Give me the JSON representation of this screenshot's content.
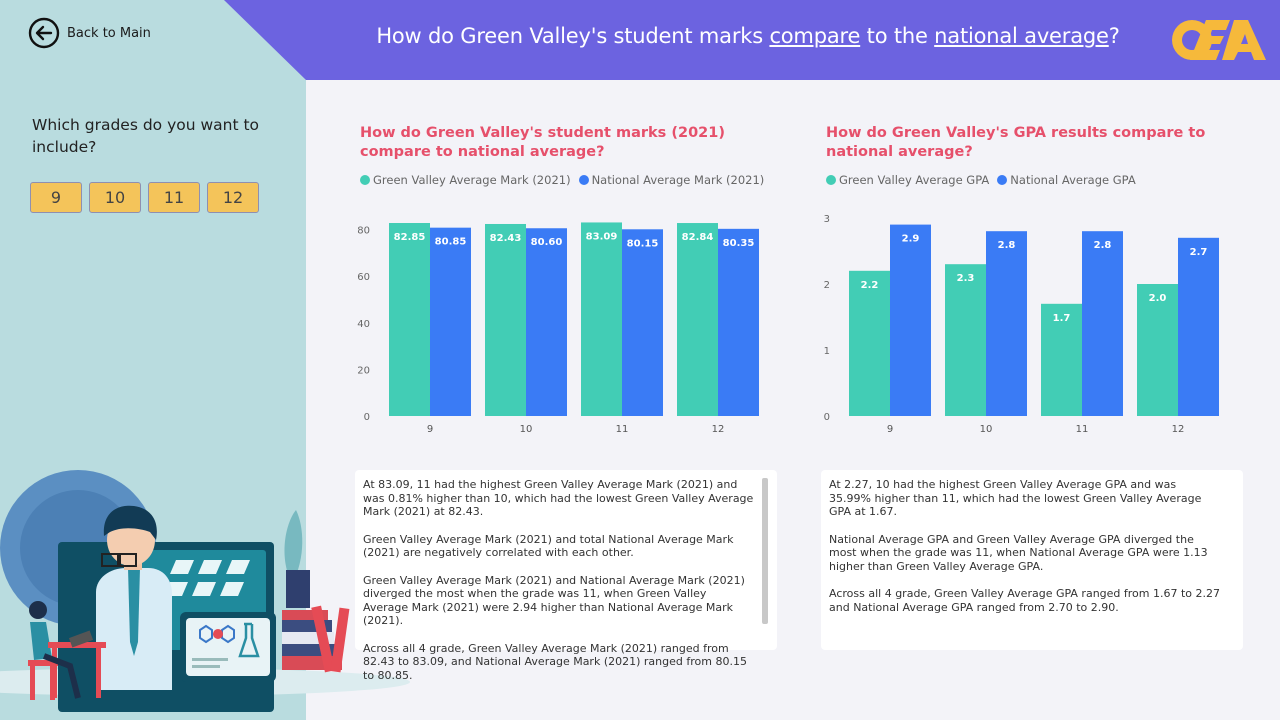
{
  "header": {
    "back_label": "Back to Main",
    "title_part1": "How do Green Valley's student marks ",
    "title_link1": "compare",
    "title_part2": " to the ",
    "title_link2": "national average",
    "title_part3": "?"
  },
  "filter": {
    "question": "Which grades do you want to include?",
    "options": [
      "9",
      "10",
      "11",
      "12"
    ]
  },
  "colors": {
    "green": "#42cdb5",
    "blue": "#3a7bf5",
    "title_red": "#e6506b",
    "header": "#6c63e0",
    "side": "#b9dcdf"
  },
  "chart_data": [
    {
      "type": "bar",
      "title": "How do Green Valley's student marks (2021) compare to national average?",
      "categories": [
        "9",
        "10",
        "11",
        "12"
      ],
      "series": [
        {
          "name": "Green Valley Average Mark (2021)",
          "values": [
            82.85,
            82.43,
            83.09,
            82.84
          ],
          "labels": [
            "82.85",
            "82.43",
            "83.09",
            "82.84"
          ]
        },
        {
          "name": "National Average Mark (2021)",
          "values": [
            80.85,
            80.6,
            80.15,
            80.35
          ],
          "labels": [
            "80.85",
            "80.60",
            "80.15",
            "80.35"
          ]
        }
      ],
      "ylim": [
        0,
        85
      ],
      "yticks": [
        0,
        20,
        40,
        60,
        80
      ],
      "legend": "top-left",
      "grid": false
    },
    {
      "type": "bar",
      "title": "How do Green Valley's GPA results compare to national average?",
      "categories": [
        "9",
        "10",
        "11",
        "12"
      ],
      "series": [
        {
          "name": "Green Valley Average GPA",
          "values": [
            2.2,
            2.3,
            1.7,
            2.0
          ],
          "labels": [
            "2.2",
            "2.3",
            "1.7",
            "2.0"
          ]
        },
        {
          "name": "National Average GPA",
          "values": [
            2.9,
            2.8,
            2.8,
            2.7
          ],
          "labels": [
            "2.9",
            "2.8",
            "2.8",
            "2.7"
          ]
        }
      ],
      "ylim": [
        0,
        3
      ],
      "yticks": [
        0,
        1,
        2,
        3
      ],
      "legend": "top-left",
      "grid": false
    }
  ],
  "insights": {
    "marks": [
      "At 83.09, 11 had the highest Green Valley Average Mark (2021) and was 0.81% higher than 10, which had the lowest Green Valley Average Mark (2021) at 82.43.",
      "Green Valley Average Mark (2021) and total National Average Mark (2021) are negatively correlated with each other.",
      "Green Valley Average Mark (2021) and National Average Mark (2021) diverged the most when the grade was 11, when Green Valley Average Mark (2021) were 2.94 higher than National Average Mark (2021).",
      "Across all 4 grade, Green Valley Average Mark (2021) ranged from 82.43 to 83.09, and National Average Mark (2021) ranged from 80.15 to 80.85."
    ],
    "gpa": [
      "At 2.27, 10 had the highest Green Valley Average GPA and was 35.99% higher than 11, which had the lowest Green Valley Average GPA at 1.67.",
      "National Average GPA and Green Valley Average GPA diverged the most when the grade was 11, when National Average GPA were 1.13 higher than Green Valley Average GPA.",
      "Across all 4 grade, Green Valley Average GPA ranged from 1.67 to 2.27 and National Average GPA ranged from 2.70 to 2.90."
    ]
  },
  "icons": {
    "back": "back-arrow-icon",
    "logo": "oea-logo"
  }
}
